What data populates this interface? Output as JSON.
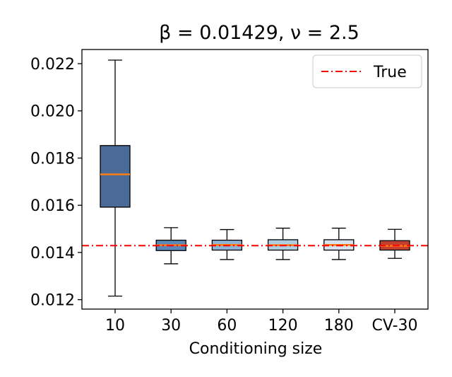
{
  "chart_data": {
    "type": "boxplot",
    "title": "β = 0.01429, ν = 2.5",
    "xlabel": "Conditioning size",
    "ylabel": "",
    "ylim": [
      0.0116,
      0.0226
    ],
    "yticks": [
      "0.012",
      "0.014",
      "0.016",
      "0.018",
      "0.020",
      "0.022"
    ],
    "ytick_values": [
      0.012,
      0.014,
      0.016,
      0.018,
      0.02,
      0.022
    ],
    "reference_line": {
      "label": "True",
      "value": 0.01429,
      "color": "#ff0000",
      "style": "dash-dot"
    },
    "legend_position": "top-right",
    "median_color": "#ff7f0e",
    "categories": [
      "10",
      "30",
      "60",
      "120",
      "180",
      "CV-30"
    ],
    "boxes": [
      {
        "label": "10",
        "whisker_low": 0.01215,
        "q1": 0.01592,
        "median": 0.01731,
        "q3": 0.01853,
        "whisker_high": 0.02215,
        "color": "#4a6a97"
      },
      {
        "label": "30",
        "whisker_low": 0.01352,
        "q1": 0.01408,
        "median": 0.01431,
        "q3": 0.01452,
        "whisker_high": 0.01505,
        "color": "#5b86b8"
      },
      {
        "label": "60",
        "whisker_low": 0.0137,
        "q1": 0.0141,
        "median": 0.01432,
        "q3": 0.01452,
        "whisker_high": 0.01497,
        "color": "#8db4d6"
      },
      {
        "label": "120",
        "whisker_low": 0.0137,
        "q1": 0.0141,
        "median": 0.01431,
        "q3": 0.01454,
        "whisker_high": 0.01503,
        "color": "#aecde2"
      },
      {
        "label": "180",
        "whisker_low": 0.0137,
        "q1": 0.0141,
        "median": 0.01432,
        "q3": 0.01454,
        "whisker_high": 0.01503,
        "color": "#d6e2ee"
      },
      {
        "label": "CV-30",
        "whisker_low": 0.01375,
        "q1": 0.0141,
        "median": 0.01428,
        "q3": 0.0145,
        "whisker_high": 0.01498,
        "color": "#c4402e"
      }
    ]
  }
}
